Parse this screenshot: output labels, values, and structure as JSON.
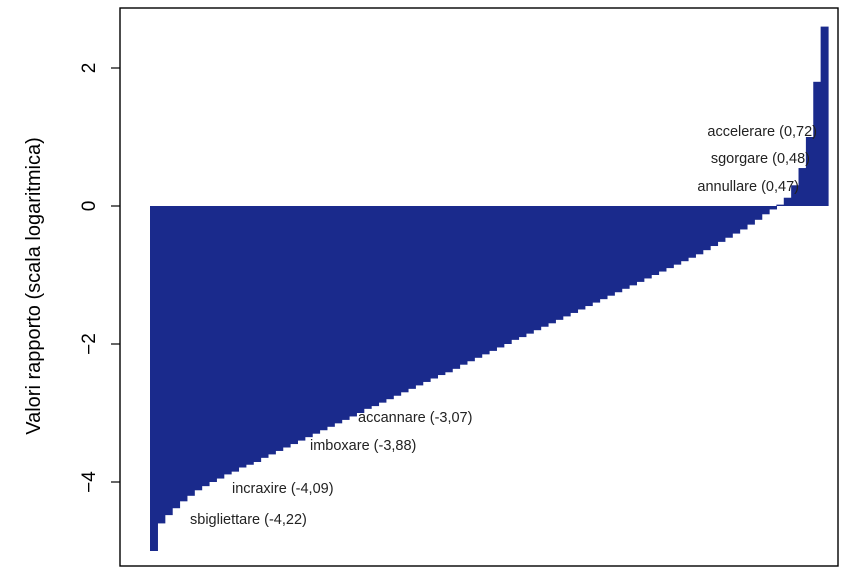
{
  "chart_data": {
    "type": "bar",
    "ylabel": "Valori rapporto (scala logaritmica)",
    "xlabel": "",
    "ylim": [
      -5.0,
      2.7
    ],
    "yticks": [
      -4,
      -2,
      0,
      2
    ],
    "ytick_labels": [
      "−4",
      "−2",
      "0",
      "2"
    ],
    "grid": false,
    "bar_color": "#1a2a8c",
    "values": [
      -5.0,
      -4.6,
      -4.48,
      -4.38,
      -4.28,
      -4.2,
      -4.12,
      -4.06,
      -4.0,
      -3.95,
      -3.89,
      -3.85,
      -3.79,
      -3.75,
      -3.71,
      -3.65,
      -3.6,
      -3.55,
      -3.5,
      -3.45,
      -3.4,
      -3.35,
      -3.3,
      -3.25,
      -3.2,
      -3.15,
      -3.1,
      -3.05,
      -3.0,
      -2.94,
      -2.9,
      -2.85,
      -2.8,
      -2.75,
      -2.7,
      -2.65,
      -2.6,
      -2.55,
      -2.5,
      -2.45,
      -2.41,
      -2.36,
      -2.3,
      -2.25,
      -2.2,
      -2.15,
      -2.1,
      -2.05,
      -2.0,
      -1.94,
      -1.9,
      -1.85,
      -1.8,
      -1.75,
      -1.7,
      -1.65,
      -1.6,
      -1.55,
      -1.5,
      -1.45,
      -1.4,
      -1.35,
      -1.3,
      -1.25,
      -1.2,
      -1.15,
      -1.1,
      -1.05,
      -1.0,
      -0.95,
      -0.9,
      -0.85,
      -0.8,
      -0.75,
      -0.7,
      -0.64,
      -0.58,
      -0.52,
      -0.46,
      -0.4,
      -0.34,
      -0.27,
      -0.2,
      -0.12,
      -0.05,
      0.02,
      0.12,
      0.3,
      0.55,
      1.0,
      1.8,
      2.6
    ],
    "annotations": [
      {
        "label": "accelerare (0,72)"
      },
      {
        "label": "sgorgare (0,48)"
      },
      {
        "label": "annullare (0,47)"
      },
      {
        "label": "accannare (-3,07)"
      },
      {
        "label": "imboxare (-3,88)"
      },
      {
        "label": "incraxire (-4,09)"
      },
      {
        "label": "sbigliettare (-4,22)"
      }
    ]
  }
}
